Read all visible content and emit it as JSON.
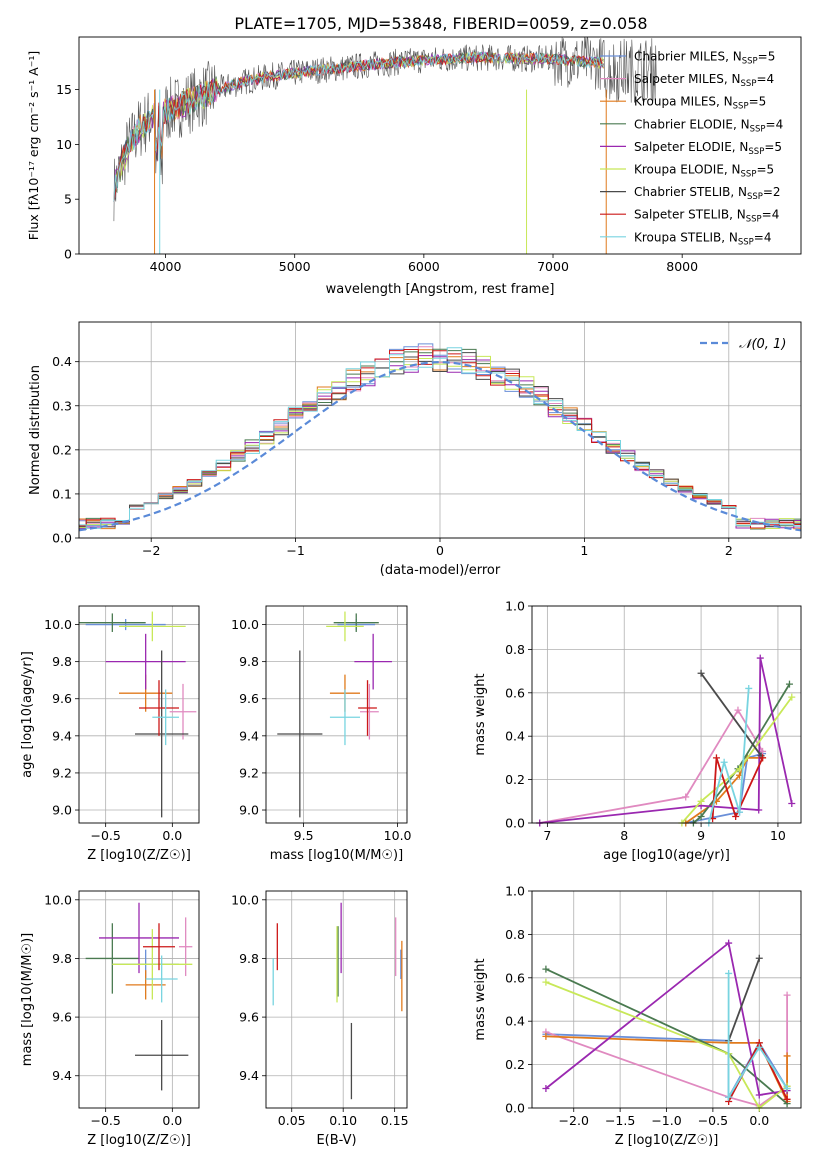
{
  "figure": {
    "title": "PLATE=1705, MJD=53848, FIBERID=0059, z=0.058"
  },
  "colors": {
    "Chabrier MILES": "#6a8fd8",
    "Salpeter MILES": "#e08ac0",
    "Kroupa MILES": "#e07a1c",
    "Chabrier ELODIE": "#4a7a50",
    "Salpeter ELODIE": "#9a28b0",
    "Kroupa ELODIE": "#c8e858",
    "Chabrier STELIB": "#4a4a4a",
    "Salpeter STELIB": "#cc1818",
    "Kroupa STELIB": "#78d4e0",
    "normal_curve": "#5a8ad8"
  },
  "chart_data": [
    {
      "id": "spectrum",
      "type": "line",
      "title": "PLATE=1705, MJD=53848, FIBERID=0059, z=0.058",
      "xlabel": "wavelength [Angstrom, rest frame]",
      "ylabel": "Flux [fλ10⁻¹⁷ erg cm⁻² s⁻¹ A⁻¹]",
      "xlim": [
        3330,
        8920
      ],
      "ylim": [
        0,
        19.8
      ],
      "xticks": [
        4000,
        5000,
        6000,
        7000,
        8000
      ],
      "yticks": [
        0,
        5,
        10,
        15
      ],
      "grid": false,
      "legend_position": "right",
      "legend": [
        "Chabrier MILES, N_SSP=5",
        "Salpeter MILES, N_SSP=4",
        "Kroupa MILES, N_SSP=5",
        "Chabrier ELODIE, N_SSP=4",
        "Salpeter ELODIE, N_SSP=5",
        "Kroupa ELODIE, N_SSP=5",
        "Chabrier STELIB, N_SSP=2",
        "Salpeter STELIB, N_SSP=4",
        "Kroupa STELIB, N_SSP=4"
      ],
      "legend_names": [
        "Chabrier MILES, N",
        "Salpeter MILES, N",
        "Kroupa MILES, N",
        "Chabrier ELODIE, N",
        "Salpeter ELODIE, N",
        "Kroupa ELODIE, N",
        "Chabrier STELIB, N",
        "Salpeter STELIB, N",
        "Kroupa STELIB, N"
      ],
      "legend_subs": [
        "SSP",
        "SSP",
        "SSP",
        "SSP",
        "SSP",
        "SSP",
        "SSP",
        "SSP",
        "SSP"
      ],
      "legend_counts": [
        "=5",
        "=4",
        "=5",
        "=4",
        "=5",
        "=5",
        "=2",
        "=4",
        "=4"
      ],
      "continuum": {
        "x": [
          3600,
          3700,
          3800,
          3900,
          4000,
          4100,
          4200,
          4300,
          4400,
          4600,
          4800,
          5000,
          5200,
          5400,
          5600,
          5800,
          6000,
          6200,
          6400,
          6600,
          6800,
          7000,
          7200,
          7400
        ],
        "y": [
          6.0,
          9.5,
          11.5,
          12.5,
          13.0,
          13.5,
          14.0,
          14.5,
          15.0,
          15.7,
          16.2,
          16.5,
          16.8,
          17.0,
          17.3,
          17.5,
          17.7,
          17.8,
          17.9,
          17.9,
          17.8,
          17.8,
          17.6,
          17.4
        ]
      }
    },
    {
      "id": "residual_histogram",
      "type": "line",
      "xlabel": "(data-model)/error",
      "ylabel": "Normed distribution",
      "xlim": [
        -2.5,
        2.5
      ],
      "ylim": [
        0,
        0.49
      ],
      "xticks": [
        -2,
        -1,
        0,
        1,
        2
      ],
      "yticks": [
        0.0,
        0.1,
        0.2,
        0.3,
        0.4
      ],
      "grid": true,
      "legend_position": "top-right",
      "legend": [
        "𝒩(0, 1)"
      ],
      "bin_width": 0.1,
      "reference": "standard normal distribution N(0,1)"
    },
    {
      "id": "age_vs_metallicity",
      "type": "scatter",
      "xlabel": "Z [log10(Z/Z☉)]",
      "ylabel": "age [log10(age/yr)]",
      "xlim": [
        -0.7,
        0.2
      ],
      "ylim": [
        8.93,
        10.1
      ],
      "xticks": [
        -0.5,
        0.0
      ],
      "yticks": [
        9.0,
        9.2,
        9.4,
        9.6,
        9.8,
        10.0
      ],
      "grid": true,
      "points": [
        {
          "model": "Chabrier MILES",
          "x": -0.35,
          "y": 10.0,
          "xerr": 0.3,
          "yerr": 0.03
        },
        {
          "model": "Salpeter MILES",
          "x": 0.08,
          "y": 9.53,
          "xerr": 0.1,
          "yerr": 0.15
        },
        {
          "model": "Kroupa MILES",
          "x": -0.2,
          "y": 9.63,
          "xerr": 0.2,
          "yerr": 0.1
        },
        {
          "model": "Chabrier ELODIE",
          "x": -0.45,
          "y": 10.01,
          "xerr": 0.25,
          "yerr": 0.05
        },
        {
          "model": "Salpeter ELODIE",
          "x": -0.2,
          "y": 9.8,
          "xerr": 0.3,
          "yerr": 0.15
        },
        {
          "model": "Kroupa ELODIE",
          "x": -0.15,
          "y": 9.99,
          "xerr": 0.25,
          "yerr": 0.08
        },
        {
          "model": "Chabrier STELIB",
          "x": -0.08,
          "y": 9.41,
          "xerr": 0.2,
          "yerr": 0.45
        },
        {
          "model": "Salpeter STELIB",
          "x": -0.1,
          "y": 9.55,
          "xerr": 0.15,
          "yerr": 0.15
        },
        {
          "model": "Kroupa STELIB",
          "x": -0.05,
          "y": 9.5,
          "xerr": 0.1,
          "yerr": 0.15
        }
      ]
    },
    {
      "id": "age_vs_mass",
      "type": "scatter",
      "xlabel": "mass [log10(M/M☉)]",
      "ylabel": "",
      "xlim": [
        9.3,
        10.05
      ],
      "ylim": [
        8.93,
        10.1
      ],
      "xticks": [
        9.5,
        10.0
      ],
      "yticks": [
        9.0,
        9.2,
        9.4,
        9.6,
        9.8,
        10.0
      ],
      "grid": true,
      "points": [
        {
          "model": "Chabrier MILES",
          "x": 9.78,
          "y": 10.0,
          "xerr": 0.1,
          "yerr": 0.03
        },
        {
          "model": "Salpeter MILES",
          "x": 9.85,
          "y": 9.53,
          "xerr": 0.05,
          "yerr": 0.15
        },
        {
          "model": "Kroupa MILES",
          "x": 9.72,
          "y": 9.63,
          "xerr": 0.08,
          "yerr": 0.1
        },
        {
          "model": "Chabrier ELODIE",
          "x": 9.78,
          "y": 10.01,
          "xerr": 0.12,
          "yerr": 0.05
        },
        {
          "model": "Salpeter ELODIE",
          "x": 9.87,
          "y": 9.8,
          "xerr": 0.1,
          "yerr": 0.15
        },
        {
          "model": "Kroupa ELODIE",
          "x": 9.72,
          "y": 9.99,
          "xerr": 0.1,
          "yerr": 0.08
        },
        {
          "model": "Chabrier STELIB",
          "x": 9.48,
          "y": 9.41,
          "xerr": 0.12,
          "yerr": 0.45
        },
        {
          "model": "Salpeter STELIB",
          "x": 9.84,
          "y": 9.55,
          "xerr": 0.05,
          "yerr": 0.15
        },
        {
          "model": "Kroupa STELIB",
          "x": 9.72,
          "y": 9.5,
          "xerr": 0.08,
          "yerr": 0.15
        }
      ]
    },
    {
      "id": "massweight_vs_age",
      "type": "line",
      "xlabel": "age [log10(age/yr)]",
      "ylabel": "mass weight",
      "xlim": [
        6.8,
        10.3
      ],
      "ylim": [
        0,
        1.0
      ],
      "xticks": [
        7,
        8,
        9,
        10
      ],
      "yticks": [
        0.0,
        0.2,
        0.4,
        0.6,
        0.8,
        1.0
      ],
      "grid": true,
      "series": [
        {
          "model": "Chabrier MILES",
          "x": [
            8.8,
            9.5,
            9.6,
            9.8
          ],
          "y": [
            0.0,
            0.05,
            0.3,
            0.32
          ]
        },
        {
          "model": "Salpeter MILES",
          "x": [
            6.9,
            8.8,
            9.48,
            9.8
          ],
          "y": [
            0.0,
            0.12,
            0.52,
            0.33
          ]
        },
        {
          "model": "Kroupa MILES",
          "x": [
            8.8,
            9.2,
            9.5,
            9.6,
            9.8
          ],
          "y": [
            0.0,
            0.1,
            0.22,
            0.3,
            0.3
          ]
        },
        {
          "model": "Chabrier ELODIE",
          "x": [
            8.9,
            9.0,
            9.48,
            10.15
          ],
          "y": [
            0.0,
            0.03,
            0.25,
            0.64
          ]
        },
        {
          "model": "Salpeter ELODIE",
          "x": [
            6.9,
            9.0,
            9.75,
            9.77,
            10.18
          ],
          "y": [
            0.0,
            0.08,
            0.06,
            0.76,
            0.09
          ]
        },
        {
          "model": "Kroupa ELODIE",
          "x": [
            8.75,
            9.0,
            9.5,
            10.18
          ],
          "y": [
            0.0,
            0.1,
            0.25,
            0.58
          ]
        },
        {
          "model": "Chabrier STELIB",
          "x": [
            9.0,
            9.78
          ],
          "y": [
            0.69,
            0.31
          ]
        },
        {
          "model": "Salpeter STELIB",
          "x": [
            9.15,
            9.2,
            9.45,
            9.8
          ],
          "y": [
            0.02,
            0.3,
            0.03,
            0.3
          ]
        },
        {
          "model": "Kroupa STELIB",
          "x": [
            9.1,
            9.3,
            9.5,
            9.62
          ],
          "y": [
            0.0,
            0.28,
            0.05,
            0.62
          ]
        }
      ]
    },
    {
      "id": "mass_vs_metallicity",
      "type": "scatter",
      "xlabel": "Z [log10(Z/Z☉)]",
      "ylabel": "mass [log10(M/M☉)]",
      "xlim": [
        -0.7,
        0.2
      ],
      "ylim": [
        9.29,
        10.03
      ],
      "xticks": [
        -0.5,
        0.0
      ],
      "yticks": [
        9.4,
        9.6,
        9.8,
        10.0
      ],
      "grid": true,
      "points": [
        {
          "model": "Chabrier MILES",
          "x": -0.2,
          "y": 9.78,
          "xerr": 0.25,
          "yerr": 0.05
        },
        {
          "model": "Salpeter MILES",
          "x": 0.1,
          "y": 9.84,
          "xerr": 0.05,
          "yerr": 0.1
        },
        {
          "model": "Kroupa MILES",
          "x": -0.2,
          "y": 9.71,
          "xerr": 0.15,
          "yerr": 0.05
        },
        {
          "model": "Chabrier ELODIE",
          "x": -0.45,
          "y": 9.8,
          "xerr": 0.2,
          "yerr": 0.12
        },
        {
          "model": "Salpeter ELODIE",
          "x": -0.25,
          "y": 9.87,
          "xerr": 0.3,
          "yerr": 0.12
        },
        {
          "model": "Kroupa ELODIE",
          "x": -0.15,
          "y": 9.78,
          "xerr": 0.3,
          "yerr": 0.12
        },
        {
          "model": "Chabrier STELIB",
          "x": -0.08,
          "y": 9.47,
          "xerr": 0.2,
          "yerr": 0.12
        },
        {
          "model": "Salpeter STELIB",
          "x": -0.1,
          "y": 9.84,
          "xerr": 0.12,
          "yerr": 0.08
        },
        {
          "model": "Kroupa STELIB",
          "x": -0.08,
          "y": 9.73,
          "xerr": 0.12,
          "yerr": 0.08
        }
      ]
    },
    {
      "id": "mass_vs_ebv",
      "type": "scatter",
      "xlabel": "E(B-V)",
      "ylabel": "",
      "xlim": [
        0.025,
        0.162
      ],
      "ylim": [
        9.29,
        10.03
      ],
      "xticks": [
        0.05,
        0.1,
        0.15
      ],
      "yticks": [
        9.4,
        9.6,
        9.8,
        10.0
      ],
      "grid": true,
      "points": [
        {
          "model": "Chabrier MILES",
          "x": 0.156,
          "y": 9.78,
          "xerr": 0,
          "yerr": 0.05
        },
        {
          "model": "Salpeter MILES",
          "x": 0.151,
          "y": 9.84,
          "xerr": 0,
          "yerr": 0.1
        },
        {
          "model": "Kroupa MILES",
          "x": 0.157,
          "y": 9.74,
          "xerr": 0,
          "yerr": 0.12
        },
        {
          "model": "Chabrier ELODIE",
          "x": 0.095,
          "y": 9.79,
          "xerr": 0,
          "yerr": 0.12
        },
        {
          "model": "Salpeter ELODIE",
          "x": 0.098,
          "y": 9.87,
          "xerr": 0,
          "yerr": 0.12
        },
        {
          "model": "Kroupa ELODIE",
          "x": 0.094,
          "y": 9.78,
          "xerr": 0,
          "yerr": 0.13
        },
        {
          "model": "Chabrier STELIB",
          "x": 0.108,
          "y": 9.45,
          "xerr": 0,
          "yerr": 0.13
        },
        {
          "model": "Salpeter STELIB",
          "x": 0.036,
          "y": 9.84,
          "xerr": 0,
          "yerr": 0.08
        },
        {
          "model": "Kroupa STELIB",
          "x": 0.032,
          "y": 9.72,
          "xerr": 0,
          "yerr": 0.08
        }
      ]
    },
    {
      "id": "massweight_vs_metallicity",
      "type": "line",
      "xlabel": "Z [log10(Z/Z☉)]",
      "ylabel": "mass weight",
      "xlim": [
        -2.45,
        0.45
      ],
      "ylim": [
        0,
        1.0
      ],
      "xticks": [
        -2.0,
        -1.5,
        -1.0,
        -0.5,
        0.0
      ],
      "yticks": [
        0.0,
        0.2,
        0.4,
        0.6,
        0.8,
        1.0
      ],
      "grid": true,
      "series": [
        {
          "model": "Chabrier MILES",
          "x": [
            -2.3,
            -0.33,
            -0.33,
            0.0,
            0.3
          ],
          "y": [
            0.34,
            0.31,
            0.05,
            0.3,
            0.09
          ]
        },
        {
          "model": "Salpeter MILES",
          "x": [
            -2.3,
            -0.33,
            0.0,
            0.3,
            0.3
          ],
          "y": [
            0.35,
            0.05,
            0.01,
            0.1,
            0.52
          ]
        },
        {
          "model": "Kroupa MILES",
          "x": [
            -2.3,
            -0.33,
            0.0,
            0.3,
            0.3
          ],
          "y": [
            0.33,
            0.3,
            0.3,
            0.03,
            0.24
          ]
        },
        {
          "model": "Chabrier ELODIE",
          "x": [
            -2.3,
            -0.33,
            0.3
          ],
          "y": [
            0.64,
            0.25,
            0.02
          ]
        },
        {
          "model": "Salpeter ELODIE",
          "x": [
            -2.3,
            -0.33,
            0.0,
            0.3
          ],
          "y": [
            0.09,
            0.76,
            0.06,
            0.08
          ]
        },
        {
          "model": "Kroupa ELODIE",
          "x": [
            -2.3,
            -0.33,
            0.0,
            0.3
          ],
          "y": [
            0.58,
            0.25,
            0.0,
            0.1
          ]
        },
        {
          "model": "Chabrier STELIB",
          "x": [
            -0.33,
            0.0
          ],
          "y": [
            0.31,
            0.69
          ]
        },
        {
          "model": "Salpeter STELIB",
          "x": [
            -0.33,
            0.0,
            0.3
          ],
          "y": [
            0.03,
            0.3,
            0.04
          ]
        },
        {
          "model": "Kroupa STELIB",
          "x": [
            -0.33,
            -0.33,
            0.0,
            0.3
          ],
          "y": [
            0.62,
            0.05,
            0.28,
            0.09
          ]
        }
      ]
    }
  ]
}
